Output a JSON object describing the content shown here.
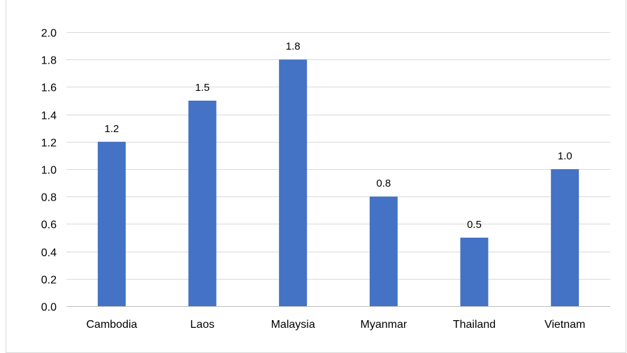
{
  "chart_data": {
    "type": "bar",
    "title": "",
    "xlabel": "",
    "ylabel": "",
    "categories": [
      "Cambodia",
      "Laos",
      "Malaysia",
      "Myanmar",
      "Thailand",
      "Vietnam"
    ],
    "values": [
      1.2,
      1.5,
      1.8,
      0.8,
      0.5,
      1.0
    ],
    "data_labels": [
      "1.2",
      "1.5",
      "1.8",
      "0.8",
      "0.5",
      "1.0"
    ],
    "y_ticks": [
      "0.0",
      "0.2",
      "0.4",
      "0.6",
      "0.8",
      "1.0",
      "1.2",
      "1.4",
      "1.6",
      "1.8",
      "2.0"
    ],
    "ylim": [
      0,
      2.0
    ],
    "grid": true,
    "legend": "none",
    "colors": {
      "bar": "#4472c4",
      "grid": "#d9d9d9",
      "axis": "#bfbfbf",
      "text": "#000000"
    }
  }
}
